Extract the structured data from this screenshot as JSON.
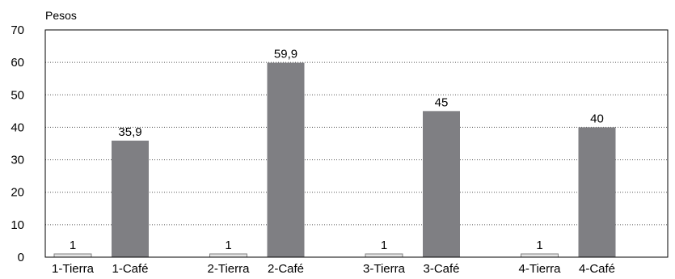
{
  "chart_data": {
    "type": "bar",
    "unit_label": "Pesos",
    "categories": [
      "1-Tierra",
      "1-Café",
      "2-Tierra",
      "2-Café",
      "3-Tierra",
      "3-Café",
      "4-Tierra",
      "4-Café"
    ],
    "values": [
      1,
      35.9,
      1,
      59.9,
      1,
      45,
      1,
      40
    ],
    "data_labels": [
      "1",
      "35,9",
      "1",
      "59,9",
      "1",
      "45",
      "1",
      "40"
    ],
    "yticks": [
      "0",
      "10",
      "20",
      "30",
      "40",
      "50",
      "60",
      "70"
    ],
    "ylim": [
      0,
      70
    ],
    "grid": "horizontal dotted",
    "legend": "none",
    "colors": {
      "tierra": "#e6e6e6",
      "tierra_border": "#808080",
      "cafe": "#7f7f83",
      "axis": "#000000",
      "grid": "#555555"
    }
  }
}
